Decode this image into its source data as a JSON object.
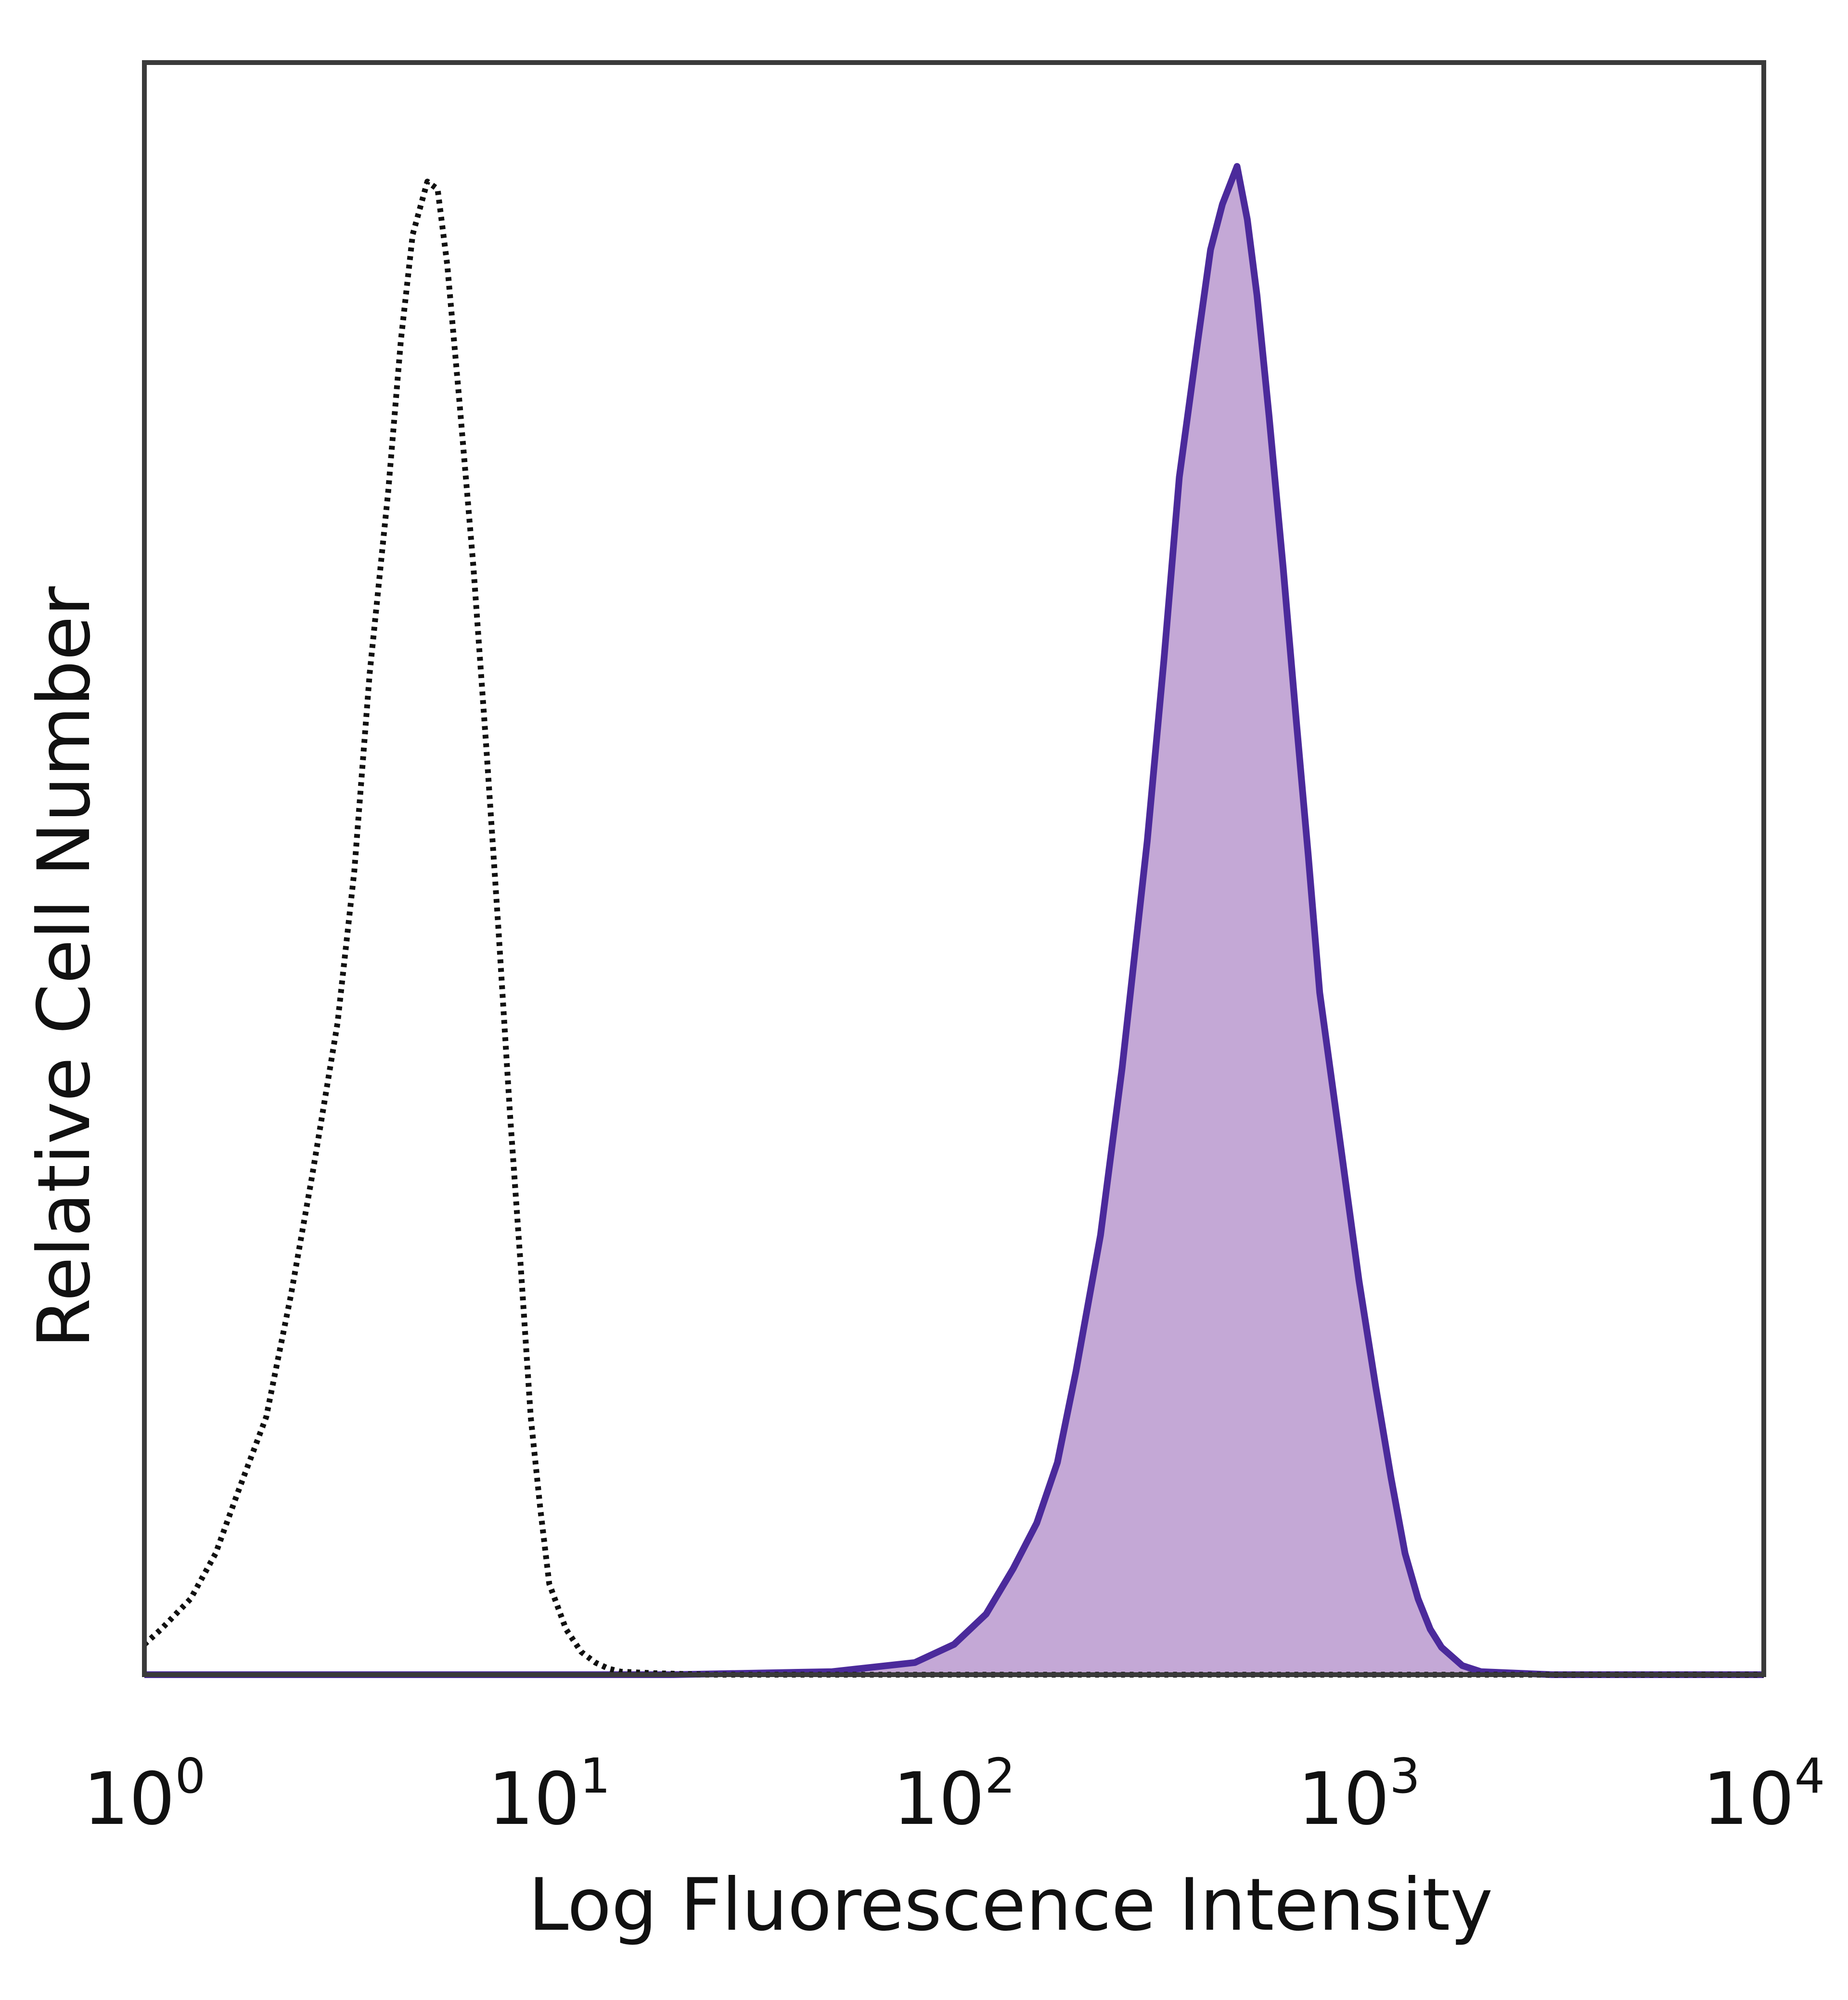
{
  "chart_data": {
    "type": "area",
    "title": "",
    "xlabel": "Log Fluorescence Intensity",
    "ylabel": "Relative Cell Number",
    "x_scale": "log",
    "xlim": [
      1,
      10000
    ],
    "ylim": [
      0,
      1
    ],
    "grid": false,
    "legend": "none",
    "x_ticks": [
      {
        "base": "10",
        "exp": "0",
        "value": 1
      },
      {
        "base": "10",
        "exp": "1",
        "value": 10
      },
      {
        "base": "10",
        "exp": "2",
        "value": 100
      },
      {
        "base": "10",
        "exp": "3",
        "value": 1000
      },
      {
        "base": "10",
        "exp": "4",
        "value": 10000
      }
    ],
    "series": [
      {
        "style": "dotted black outline",
        "color": "#111111",
        "x": [
          1.0,
          1.1,
          1.3,
          1.5,
          1.7,
          2.0,
          2.3,
          2.6,
          3.0,
          3.3,
          3.6,
          4.0,
          4.3,
          4.6,
          5.0,
          5.3,
          5.6,
          6.0,
          6.5,
          7.0,
          7.5,
          8.0,
          8.5,
          9.0,
          9.5,
          10.0,
          11.0,
          12.0,
          13.0,
          14.0,
          15.0,
          18.0,
          25.0,
          50.0,
          100.0,
          10000.0
        ],
        "y": [
          0.02,
          0.03,
          0.05,
          0.08,
          0.12,
          0.17,
          0.25,
          0.33,
          0.43,
          0.53,
          0.66,
          0.78,
          0.88,
          0.95,
          0.985,
          0.98,
          0.93,
          0.84,
          0.73,
          0.61,
          0.49,
          0.37,
          0.27,
          0.17,
          0.11,
          0.06,
          0.03,
          0.015,
          0.008,
          0.004,
          0.002,
          0.001,
          0.0,
          0.0,
          0.0,
          0.0
        ]
      },
      {
        "style": "filled purple",
        "color": "#4b2a9b",
        "fill": "#c4a8d6",
        "x": [
          1.0,
          20.0,
          50.0,
          80.0,
          100.0,
          120.0,
          140.0,
          160.0,
          180.0,
          200.0,
          230.0,
          260.0,
          300.0,
          330.0,
          360.0,
          400.0,
          430.0,
          460.0,
          500.0,
          530.0,
          560.0,
          600.0,
          650.0,
          700.0,
          750.0,
          800.0,
          900.0,
          1000.0,
          1100.0,
          1200.0,
          1300.0,
          1400.0,
          1500.0,
          1600.0,
          1800.0,
          2000.0,
          3000.0,
          10000.0
        ],
        "y": [
          0.0,
          0.0,
          0.002,
          0.008,
          0.02,
          0.04,
          0.07,
          0.1,
          0.14,
          0.2,
          0.29,
          0.4,
          0.55,
          0.67,
          0.79,
          0.88,
          0.94,
          0.97,
          0.995,
          0.96,
          0.91,
          0.83,
          0.73,
          0.63,
          0.54,
          0.45,
          0.35,
          0.26,
          0.19,
          0.13,
          0.08,
          0.05,
          0.03,
          0.018,
          0.006,
          0.002,
          0.0,
          0.0
        ]
      }
    ]
  }
}
